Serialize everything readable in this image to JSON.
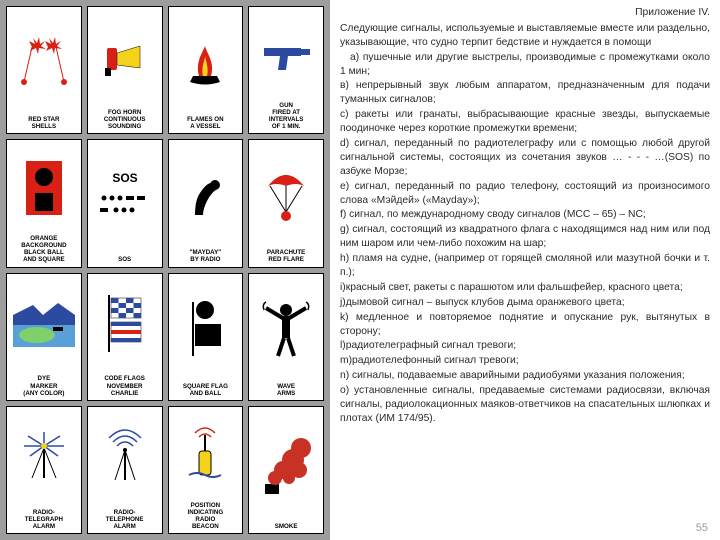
{
  "grid": {
    "cards": [
      {
        "label": "RED STAR\nSHELLS"
      },
      {
        "label": "FOG HORN\nCONTINUOUS\nSOUNDING"
      },
      {
        "label": "FLAMES ON\nA VESSEL"
      },
      {
        "label": "GUN\nFIRED AT\nINTERVALS\nOF 1 MIN."
      },
      {
        "label": "ORANGE\nBACKGROUND\nBLACK BALL\nAND SQUARE"
      },
      {
        "label": "SOS"
      },
      {
        "label": "\"MAYDAY\"\nBY RADIO"
      },
      {
        "label": "PARACHUTE\nRED FLARE"
      },
      {
        "label": "DYE\nMARKER\n(ANY COLOR)"
      },
      {
        "label": "CODE FLAGS\nNOVEMBER\nCHARLIE"
      },
      {
        "label": "SQUARE FLAG\nAND BALL"
      },
      {
        "label": "WAVE\nARMS"
      },
      {
        "label": "RADIO-\nTELEGRAPH\nALARM"
      },
      {
        "label": "RADIO-\nTELEPHONE\nALARM"
      },
      {
        "label": "POSITION\nINDICATING\nRADIO\nBEACON"
      },
      {
        "label": "SMOKE"
      }
    ],
    "colors": {
      "bg": "#9d9d9d",
      "card_bg": "#ffffff",
      "red": "#d82015",
      "orange": "#f28a1a",
      "black": "#000000",
      "yellow": "#f4d21a",
      "blue": "#2b4aa0",
      "white": "#ffffff",
      "smoke": "#c73224",
      "green": "#7fcf6a"
    }
  },
  "text": {
    "title": "Приложение IV.",
    "intro": "Следующие сигналы, используемые и выставляемые вместе или раздельно, указывающие, что судно терпит бедствие и нуждается в помощи",
    "items": [
      "а) пушечные или другие выстрелы, производимые с промежутками около 1 мин;",
      "в) непрерывный звук любым аппаратом, предназначенным для подачи туманных сигналов;",
      "с) ракеты или гранаты, выбрасывающие красные звезды, выпускаемые поодиночке через короткие промежутки времени;",
      "d) сигнал, переданный по радиотелеграфу или с помощью любой другой сигнальной системы, состоящих из сочетания звуков … - - - …(SOS) по азбуке Морзе;",
      "e) сигнал, переданный по радио телефону, состоящий из произносимого слова «Мэйдей» («Mayday»);",
      "f) сигнал, по международному своду сигналов (МСС – 65) – NC;",
      "g) сигнал, состоящий из квадратного флага с находящимся над ним или под ним шаром или чем-либо похожим на шар;",
      "h) пламя на судне, (например от горящей смоляной или мазутной бочки и т. п.);",
      "i)красный свет, ракеты с парашютом или фальшфейер, красного цвета;",
      "j)дымовой сигнал – выпуск клубов дыма оранжевого цвета;",
      "k) медленное и повторяемое поднятие и опускание рук, вытянутых в сторону;",
      "l)радиотелеграфный сигнал тревоги;",
      "m)радиотелефонный сигнал тревоги;",
      "n) сигналы, подаваемые аварийными радиобуями указания положения;",
      "о) установленные сигналы, предаваемые системами радиосвязи, включая сигналы, радиолокационных маяков-ответчиков на спасательных шлюпках и плотах (ИМ 174/95)."
    ]
  },
  "page_number": "55"
}
